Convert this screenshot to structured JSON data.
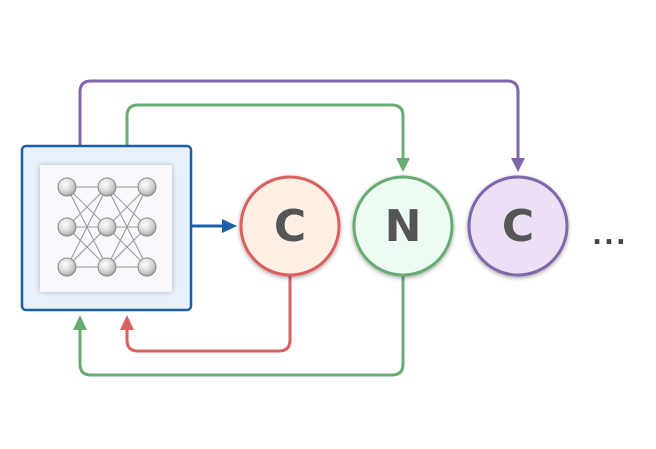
{
  "diagram": {
    "colors": {
      "purple": "#8066aa",
      "green": "#68ac74",
      "red": "#db6060",
      "blue": "#1c5fab",
      "letter": "#555555",
      "ellipsis": "#444444"
    },
    "model_box": {
      "icon": "neural-network-icon",
      "border_color": "#1c5fab",
      "fill": "#e9f2fb"
    },
    "sequence": [
      {
        "letter": "C",
        "border": "#db6060",
        "fill": "#fdefe4"
      },
      {
        "letter": "N",
        "border": "#68ac74",
        "fill": "#eefbf3"
      },
      {
        "letter": "C",
        "border": "#8066aa",
        "fill": "#ebe0f5"
      }
    ],
    "ellipsis": "..."
  }
}
